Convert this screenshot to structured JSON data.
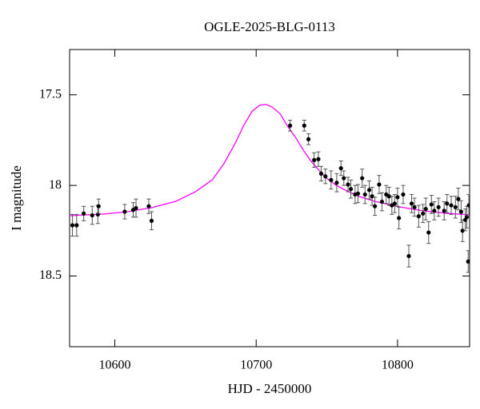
{
  "chart_data": {
    "type": "scatter",
    "title": "OGLE-2025-BLG-0113",
    "xlabel": "HJD - 2450000",
    "ylabel": "I magnitude",
    "xlim": [
      10568,
      10851
    ],
    "ylim": [
      18.89,
      17.25
    ],
    "xticks": [
      10600,
      10700,
      10800
    ],
    "yticks": [
      17.5,
      18,
      18.5
    ],
    "series": [
      {
        "type": "line",
        "color": "#ff00ff",
        "x": [
          10568,
          10592,
          10609,
          10626,
          10643,
          10657,
          10669,
          10677,
          10685.5,
          10691,
          10697,
          10702.5,
          10707,
          10711,
          10717,
          10722,
          10728,
          10733.5,
          10739,
          10745,
          10750,
          10756,
          10762,
          10773,
          10784,
          10801,
          10818,
          10835,
          10851
        ],
        "values": [
          18.167,
          18.158,
          18.145,
          18.123,
          18.088,
          18.035,
          17.969,
          17.882,
          17.763,
          17.671,
          17.592,
          17.557,
          17.553,
          17.566,
          17.605,
          17.671,
          17.737,
          17.807,
          17.868,
          17.921,
          17.961,
          17.996,
          18.022,
          18.061,
          18.088,
          18.118,
          18.14,
          18.154,
          18.162
        ]
      },
      {
        "type": "scatter",
        "color": "#000000",
        "error_color": "#555555",
        "x": [
          10570,
          10573,
          10578,
          10584,
          10588,
          10588.5,
          10607,
          10613,
          10615,
          10624,
          10626,
          10724,
          10734,
          10737,
          10741,
          10744,
          10746,
          10749,
          10753,
          10757,
          10760,
          10762,
          10765,
          10767,
          10770,
          10772,
          10775,
          10777,
          10780,
          10782,
          10784,
          10787,
          10789,
          10792,
          10794,
          10796,
          10798,
          10800,
          10801,
          10804,
          10808,
          10810,
          10812,
          10815,
          10818,
          10820,
          10822,
          10824,
          10826,
          10829,
          10833,
          10835,
          10838,
          10841,
          10843,
          10845,
          10846,
          10848,
          10849,
          10850,
          10850.5
        ],
        "values": [
          18.22,
          18.22,
          18.155,
          18.165,
          18.16,
          18.115,
          18.145,
          18.135,
          18.125,
          18.115,
          18.195,
          17.67,
          17.67,
          17.745,
          17.86,
          17.855,
          17.935,
          17.95,
          17.97,
          17.985,
          17.905,
          17.96,
          17.995,
          18.02,
          18.05,
          18.045,
          17.96,
          18.05,
          18.025,
          18.06,
          18.115,
          17.995,
          18.09,
          18.05,
          18.06,
          18.11,
          18.1,
          18.065,
          18.18,
          18.05,
          18.39,
          18.1,
          18.12,
          18.17,
          18.155,
          18.13,
          18.26,
          18.105,
          18.14,
          18.12,
          18.14,
          18.1,
          18.11,
          18.12,
          18.075,
          18.145,
          18.25,
          18.19,
          18.175,
          18.42,
          18.11
        ],
        "errors": [
          0.06,
          0.06,
          0.04,
          0.05,
          0.05,
          0.04,
          0.04,
          0.04,
          0.05,
          0.04,
          0.05,
          0.03,
          0.03,
          0.03,
          0.04,
          0.04,
          0.04,
          0.04,
          0.05,
          0.05,
          0.04,
          0.04,
          0.04,
          0.05,
          0.05,
          0.05,
          0.05,
          0.05,
          0.05,
          0.05,
          0.05,
          0.05,
          0.05,
          0.05,
          0.05,
          0.05,
          0.05,
          0.05,
          0.06,
          0.05,
          0.06,
          0.05,
          0.05,
          0.06,
          0.05,
          0.06,
          0.06,
          0.05,
          0.05,
          0.05,
          0.05,
          0.05,
          0.05,
          0.06,
          0.06,
          0.06,
          0.06,
          0.06,
          0.06,
          0.06,
          0.06
        ]
      }
    ]
  }
}
